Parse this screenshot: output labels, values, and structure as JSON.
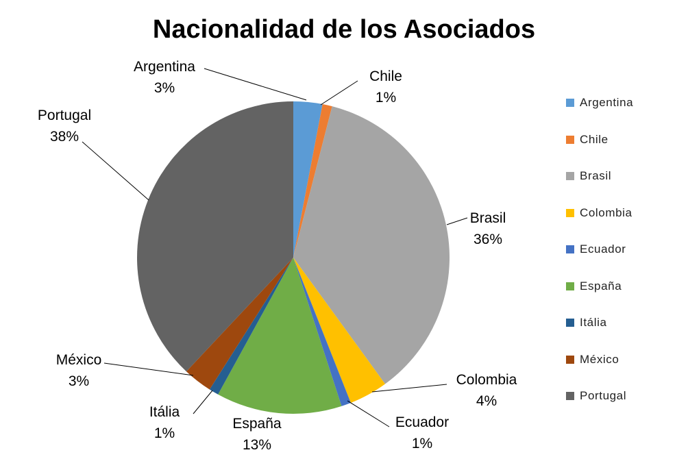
{
  "chart_data": {
    "type": "pie",
    "title": "Nacionalidad de los Asociados",
    "slices": [
      {
        "name": "Argentina",
        "percent": 3,
        "label": "3%",
        "color": "#5B9BD5"
      },
      {
        "name": "Chile",
        "percent": 1,
        "label": "1%",
        "color": "#ED7D31"
      },
      {
        "name": "Brasil",
        "percent": 36,
        "label": "36%",
        "color": "#A5A5A5"
      },
      {
        "name": "Colombia",
        "percent": 4,
        "label": "4%",
        "color": "#FFC000"
      },
      {
        "name": "Ecuador",
        "percent": 1,
        "label": "1%",
        "color": "#4472C4"
      },
      {
        "name": "España",
        "percent": 13,
        "label": "13%",
        "color": "#70AD47"
      },
      {
        "name": "Itália",
        "percent": 1,
        "label": "1%",
        "color": "#255E91"
      },
      {
        "name": "México",
        "percent": 3,
        "label": "3%",
        "color": "#9E480E"
      },
      {
        "name": "Portugal",
        "percent": 38,
        "label": "38%",
        "color": "#636363"
      }
    ],
    "legend_position": "right"
  }
}
